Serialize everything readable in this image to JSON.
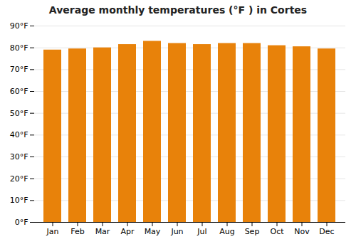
{
  "chart_data": {
    "type": "bar",
    "title": "Average monthly temperatures (°F ) in Cortes",
    "categories": [
      "Jan",
      "Feb",
      "Mar",
      "Apr",
      "May",
      "Jun",
      "Jul",
      "Aug",
      "Sep",
      "Oct",
      "Nov",
      "Dec"
    ],
    "values": [
      79,
      79.5,
      80,
      81.5,
      83,
      82,
      81.5,
      82,
      82,
      81,
      80.5,
      79.5
    ],
    "color": "#E8820A",
    "ylim": [
      0,
      90
    ],
    "yticks": [
      {
        "value": 0,
        "label": "0°F"
      },
      {
        "value": 10,
        "label": "10°F"
      },
      {
        "value": 20,
        "label": "20°F"
      },
      {
        "value": 30,
        "label": "30°F"
      },
      {
        "value": 40,
        "label": "40°F"
      },
      {
        "value": 50,
        "label": "50°F"
      },
      {
        "value": 60,
        "label": "60°F"
      },
      {
        "value": 70,
        "label": "70°F"
      },
      {
        "value": 80,
        "label": "80°F"
      },
      {
        "value": 90,
        "label": "90°F"
      }
    ],
    "grid": true
  }
}
